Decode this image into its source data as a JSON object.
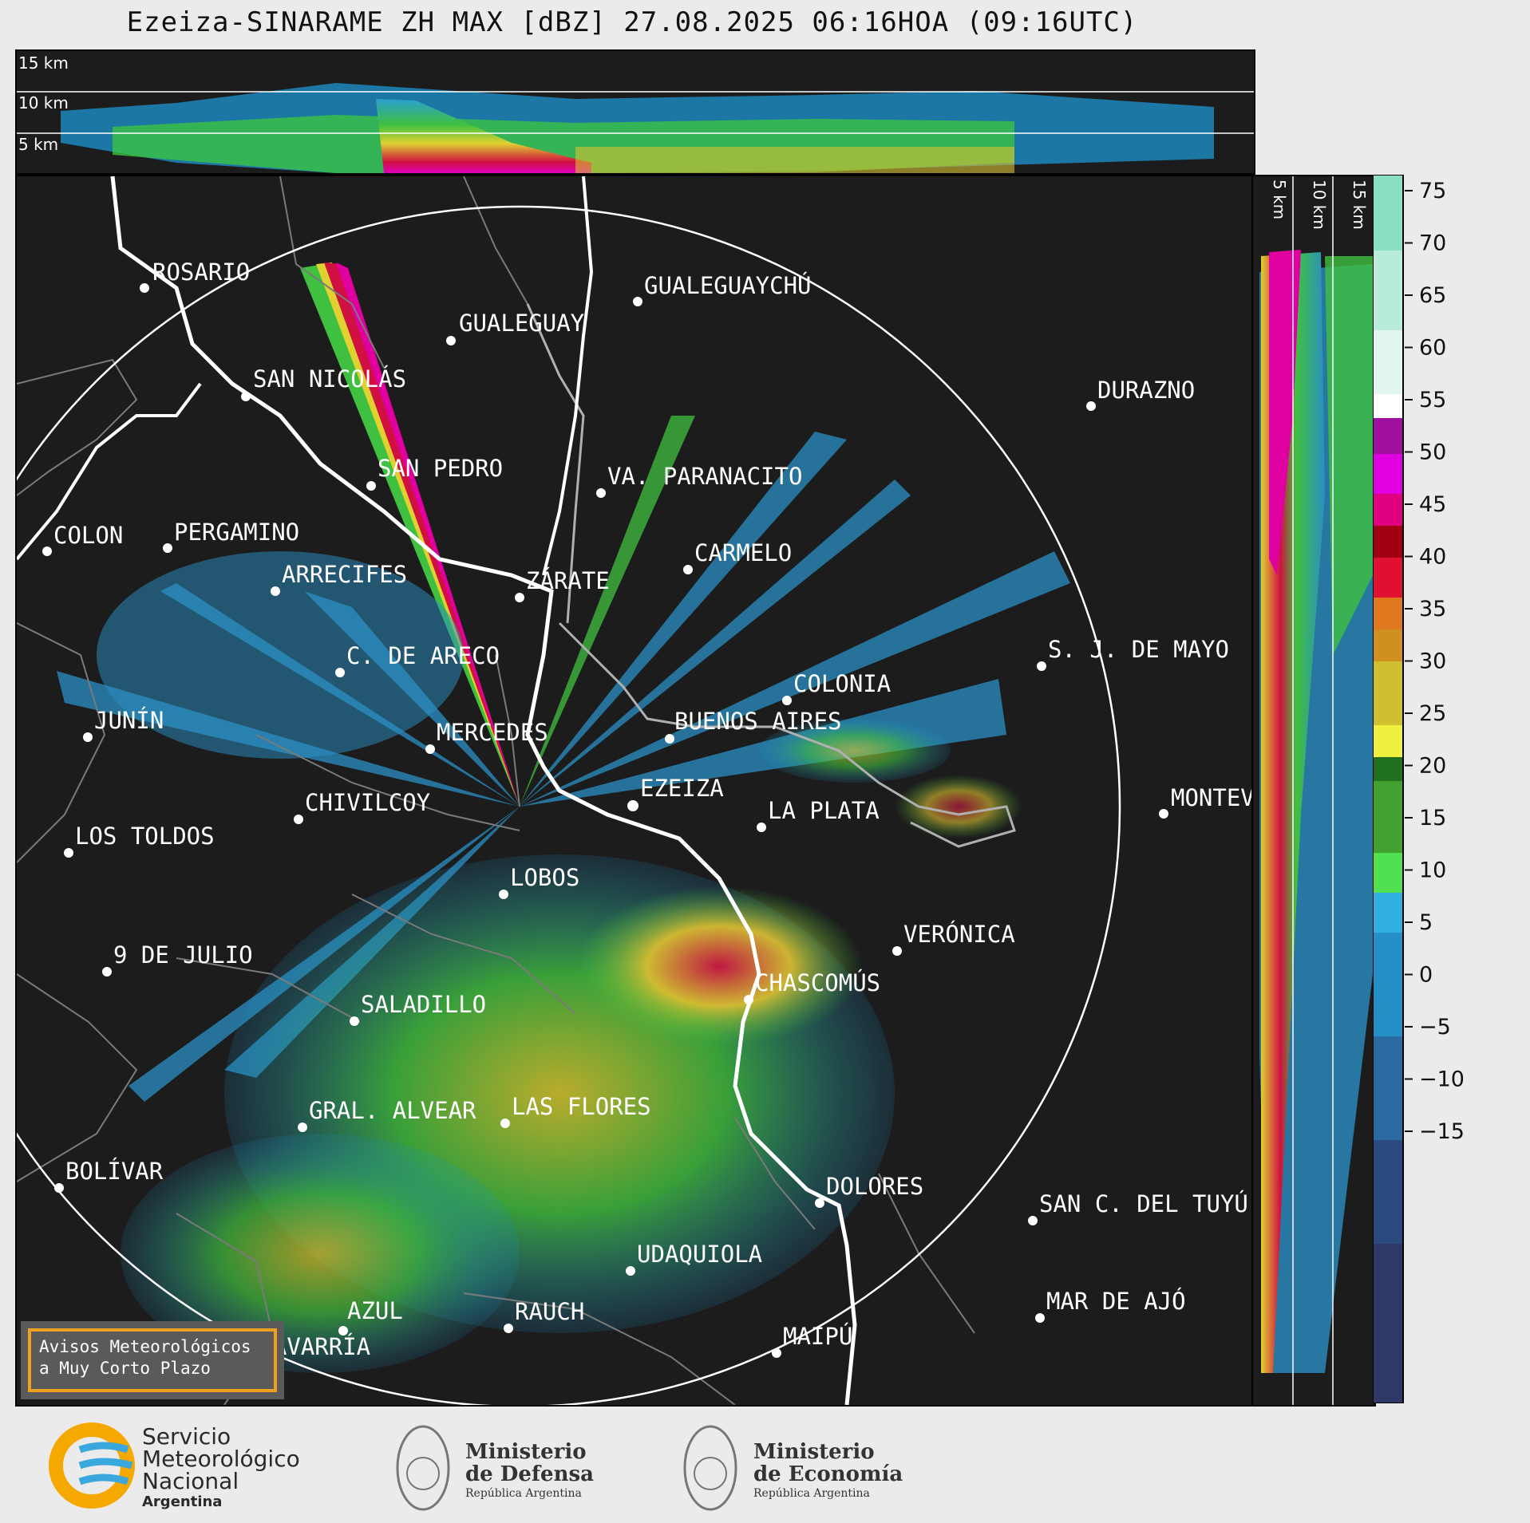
{
  "title": "Ezeiza-SINARAME ZH MAX [dBZ] 27.08.2025 06:16HOA (09:16UTC)",
  "top_panel": {
    "altitude_labels": [
      "15 km",
      "10 km",
      "5 km"
    ]
  },
  "side_panel": {
    "altitude_labels": [
      "5 km",
      "10 km",
      "15 km"
    ]
  },
  "colorbar": {
    "unit": "dBZ",
    "ticks": [
      "75",
      "70",
      "65",
      "60",
      "55",
      "50",
      "45",
      "40",
      "35",
      "30",
      "25",
      "20",
      "15",
      "10",
      "5",
      "0",
      "−5",
      "−10",
      "−15"
    ]
  },
  "map": {
    "radar_site": "EZEIZA",
    "cities": [
      "ROSARIO",
      "GUALEGUAYCHÚ",
      "GUALEGUAY",
      "SAN NICOLÁS",
      "DURAZNO",
      "SAN PEDRO",
      "VA. PARANACITO",
      "COLON",
      "PERGAMINO",
      "ARRECIFES",
      "ZÁRATE",
      "CARMELO",
      "C. DE ARECO",
      "S. J. DE MAYO",
      "COLONIA",
      "JUNÍN",
      "BUENOS AIRES",
      "MERCEDES",
      "EZEIZA",
      "MONTEV",
      "CHIVILCOY",
      "LA PLATA",
      "LOS TOLDOS",
      "LOBOS",
      "VERÓNICA",
      "9 DE JULIO",
      "CHASCOMÚS",
      "SALADILLO",
      "GRAL. ALVEAR",
      "LAS FLORES",
      "BOLÍVAR",
      "DOLORES",
      "SAN C. DEL TUYÚ",
      "UDAQUIOLA",
      "AZUL",
      "MAR DE AJÓ",
      "RAUCH",
      "OLAVARRÍA",
      "MAIPÚ"
    ]
  },
  "warning_box": {
    "line1": "Avisos Meteorológicos",
    "line2": "a Muy Corto Plazo"
  },
  "logos": {
    "smn": [
      "Servicio",
      "Meteorológico",
      "Nacional",
      "Argentina"
    ],
    "defensa": [
      "Ministerio",
      "de Defensa",
      "República Argentina"
    ],
    "economia": [
      "Ministerio",
      "de Economía",
      "República Argentina"
    ]
  },
  "colors": {
    "background": "#1c1c1c",
    "coast": "#ffffff",
    "boundaries": "#808080",
    "warning_border": "#f0a020"
  }
}
